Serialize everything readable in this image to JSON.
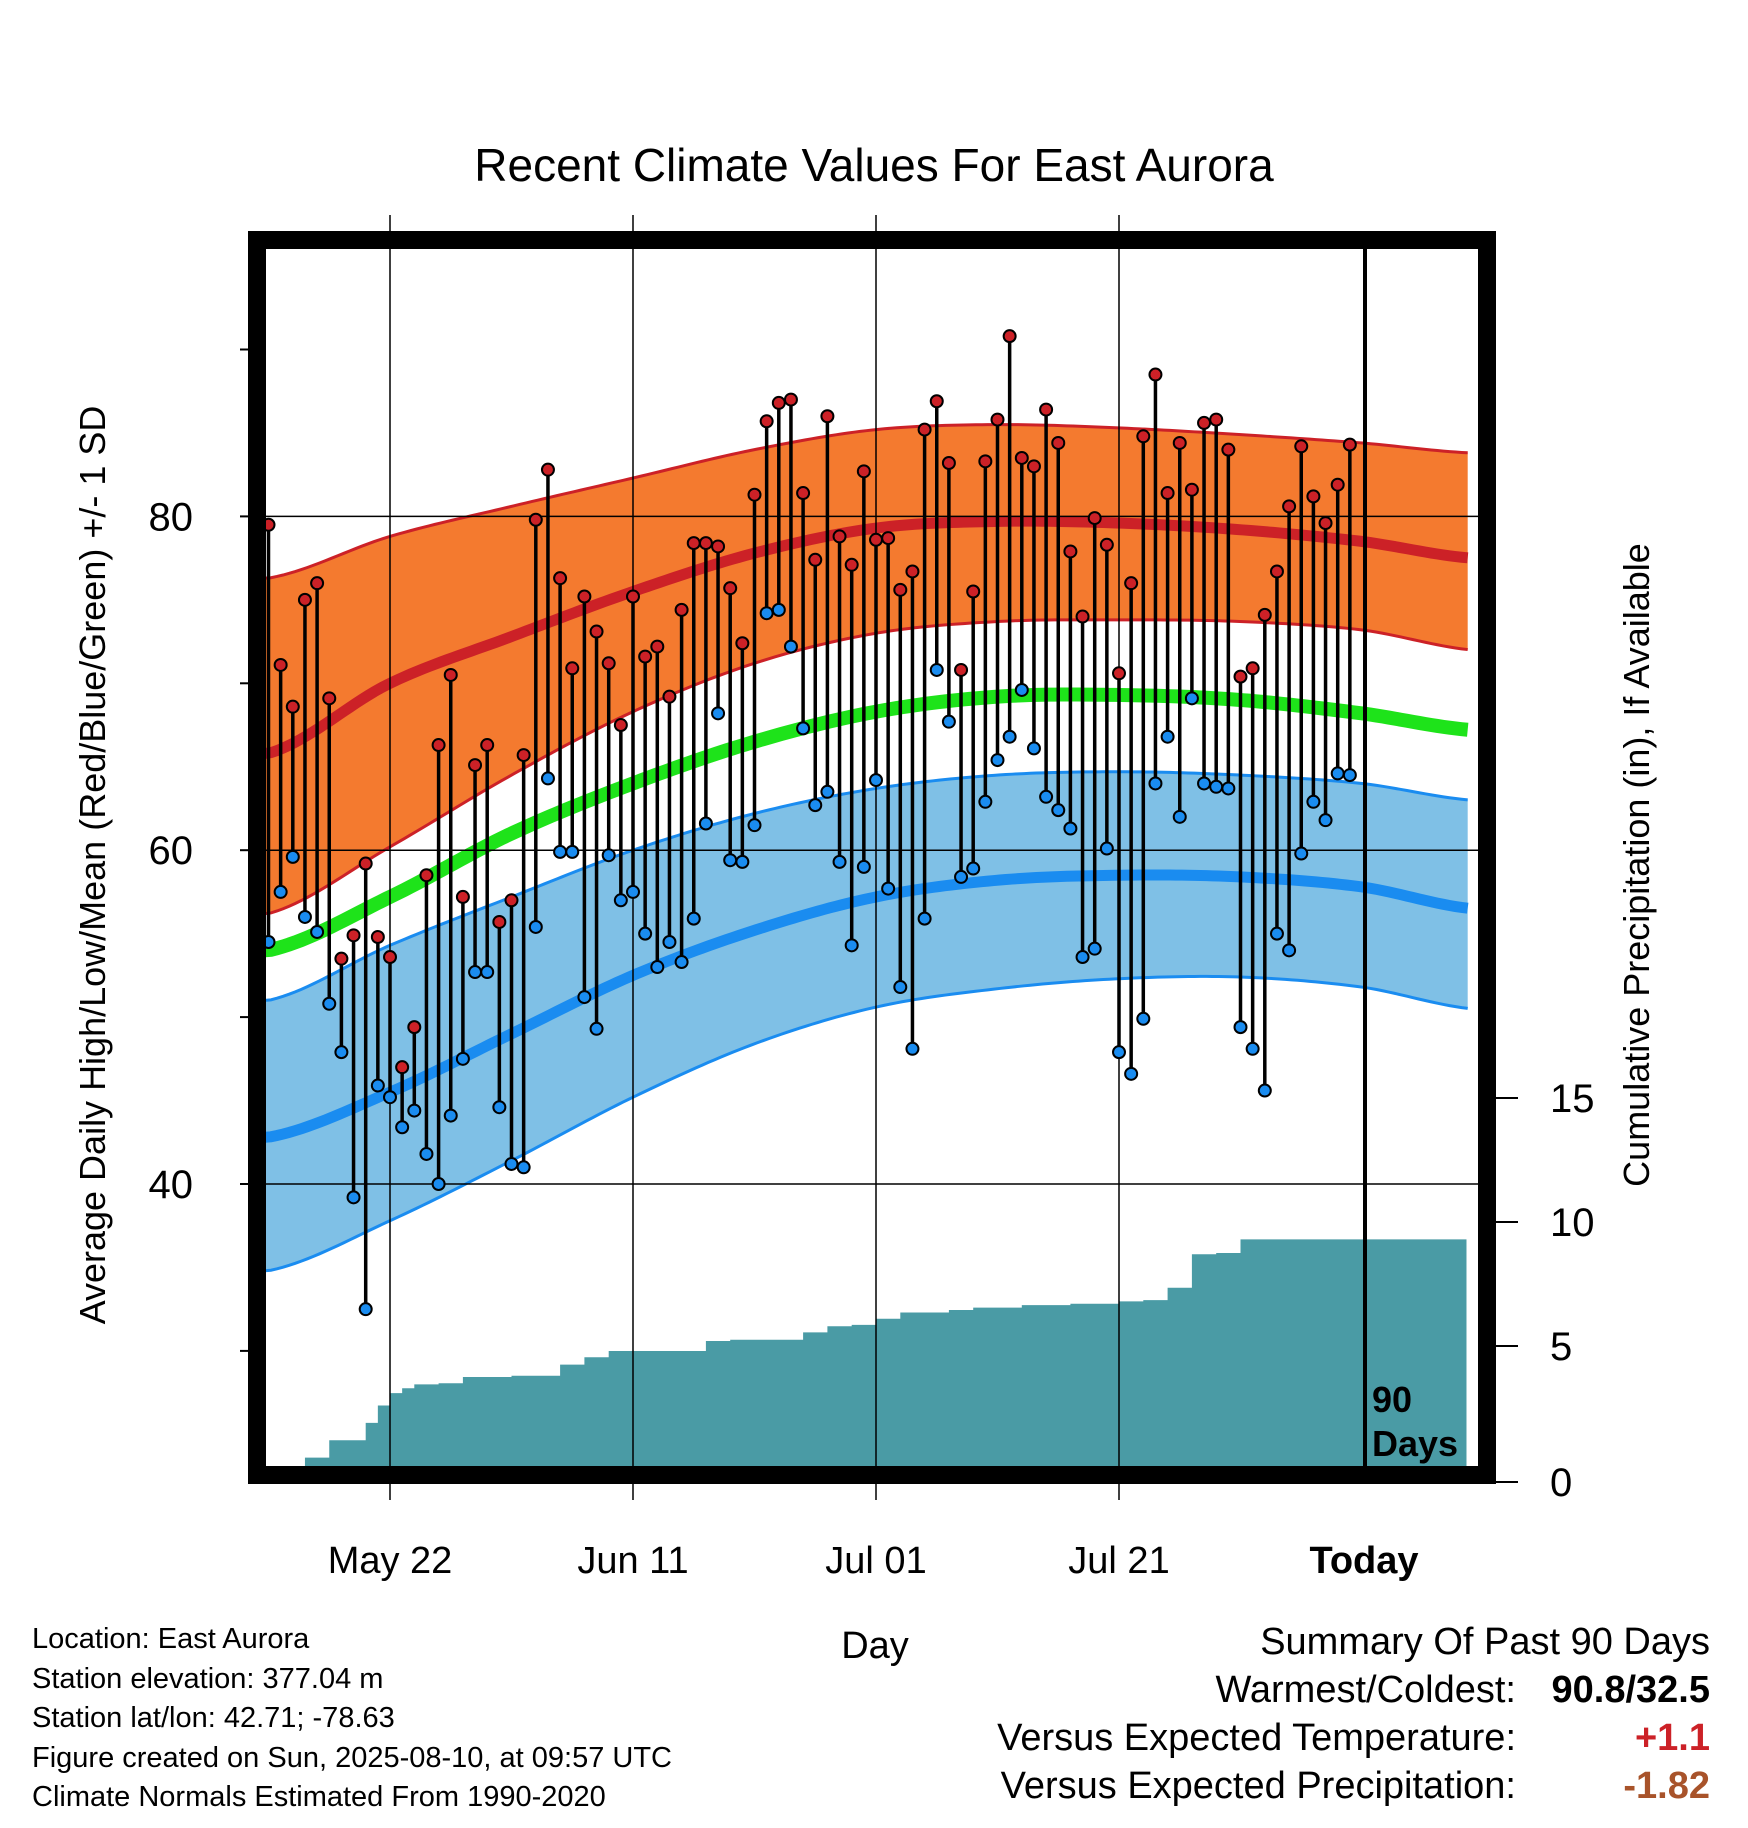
{
  "chart_data": {
    "type": "line",
    "title": "Recent Climate Values For East Aurora",
    "xlabel": "Day",
    "ylabel": "Average Daily High/Low/Mean (Red/Blue/Green) +/- 1 SD",
    "y2label": "Cumulative Precipitation (in), If Available",
    "x_ticks": [
      {
        "day": 10,
        "label": "May 22"
      },
      {
        "day": 30,
        "label": "Jun 11"
      },
      {
        "day": 50,
        "label": "Jul 01"
      },
      {
        "day": 70,
        "label": "Jul 21"
      },
      {
        "day": 90,
        "label": "Today"
      }
    ],
    "xlim": [
      -1,
      99
    ],
    "ylim": [
      25,
      97
    ],
    "y_ticks": [
      40,
      60,
      80
    ],
    "y_minor_ticks": [
      30,
      50,
      70,
      90
    ],
    "y2_ticks": [
      0,
      5,
      10,
      15
    ],
    "y2lim": [
      0,
      15
    ],
    "today_marker_label": "90\nDays",
    "normals": {
      "days": [
        0,
        10,
        20,
        30,
        40,
        50,
        60,
        70,
        80,
        90,
        99
      ],
      "high_mean": [
        65.8,
        70.0,
        72.8,
        75.5,
        77.8,
        79.3,
        79.7,
        79.6,
        79.2,
        78.5,
        77.5
      ],
      "high_sd_upper": [
        76.3,
        78.8,
        80.6,
        82.3,
        84.0,
        85.2,
        85.5,
        85.3,
        84.9,
        84.4,
        83.8
      ],
      "high_sd_lower": [
        56.2,
        60.2,
        64.5,
        68.3,
        71.2,
        73.0,
        73.7,
        73.8,
        73.7,
        73.2,
        72.0
      ],
      "mean": [
        54.0,
        57.2,
        61.0,
        64.0,
        66.5,
        68.3,
        69.2,
        69.3,
        69.0,
        68.2,
        67.2
      ],
      "low_mean": [
        42.8,
        45.5,
        49.0,
        52.5,
        55.2,
        57.2,
        58.2,
        58.5,
        58.4,
        57.8,
        56.5
      ],
      "low_sd_upper": [
        51.0,
        54.3,
        57.2,
        60.0,
        62.2,
        63.7,
        64.5,
        64.7,
        64.5,
        64.0,
        63.0
      ],
      "low_sd_lower": [
        34.8,
        37.8,
        41.4,
        45.2,
        48.4,
        50.6,
        51.7,
        52.3,
        52.4,
        51.8,
        50.5
      ]
    },
    "daily_high": [
      79.5,
      71.1,
      68.6,
      75.0,
      76.0,
      69.1,
      53.5,
      54.9,
      59.2,
      54.8,
      53.6,
      47.0,
      49.4,
      58.5,
      66.3,
      70.5,
      57.2,
      65.1,
      66.3,
      55.7,
      57.0,
      65.7,
      79.8,
      82.8,
      76.3,
      70.9,
      75.2,
      73.1,
      71.2,
      67.5,
      75.2,
      71.6,
      72.2,
      69.2,
      74.4,
      78.4,
      78.4,
      78.2,
      75.7,
      72.4,
      81.3,
      85.7,
      86.8,
      87.0,
      81.4,
      77.4,
      86.0,
      78.8,
      77.1,
      82.7,
      78.6,
      78.7,
      75.6,
      76.7,
      85.2,
      86.9,
      83.2,
      70.8,
      75.5,
      83.3,
      85.8,
      90.8,
      83.5,
      83.0,
      86.4,
      84.4,
      77.9,
      74.0,
      79.9,
      78.3,
      70.6,
      76.0,
      84.8,
      88.5,
      81.4,
      84.4,
      81.6,
      85.6,
      85.8,
      84.0,
      70.4,
      70.9,
      74.1,
      76.7,
      80.6,
      84.2,
      81.2,
      79.6,
      81.9,
      84.3
    ],
    "daily_low": [
      54.5,
      57.5,
      59.6,
      56.0,
      55.1,
      50.8,
      47.9,
      39.2,
      32.5,
      45.9,
      45.2,
      43.4,
      44.4,
      41.8,
      40.0,
      44.1,
      47.5,
      52.7,
      52.7,
      44.6,
      41.2,
      41.0,
      55.4,
      64.3,
      59.9,
      59.9,
      51.2,
      49.3,
      59.7,
      57.0,
      57.5,
      55.0,
      53.0,
      54.5,
      53.3,
      55.9,
      61.6,
      68.2,
      59.4,
      59.3,
      61.5,
      74.2,
      74.4,
      72.2,
      67.3,
      62.7,
      63.5,
      59.3,
      54.3,
      59.0,
      64.2,
      57.7,
      51.8,
      48.1,
      55.9,
      70.8,
      67.7,
      58.4,
      58.9,
      62.9,
      65.4,
      66.8,
      69.6,
      66.1,
      63.2,
      62.4,
      61.3,
      53.6,
      54.1,
      60.1,
      47.9,
      46.6,
      49.9,
      64.0,
      66.8,
      62.0,
      69.1,
      64.0,
      63.8,
      63.7,
      49.4,
      48.1,
      45.6,
      55.0,
      54.0,
      59.8,
      62.9,
      61.8,
      64.6,
      64.5
    ],
    "cumulative_precip_steps": [
      [
        2,
        0.15
      ],
      [
        3,
        0.5
      ],
      [
        5,
        1.2
      ],
      [
        8,
        1.9
      ],
      [
        9,
        2.6
      ],
      [
        10,
        3.1
      ],
      [
        11,
        3.3
      ],
      [
        12,
        3.45
      ],
      [
        14,
        3.5
      ],
      [
        16,
        3.75
      ],
      [
        20,
        3.8
      ],
      [
        24,
        4.25
      ],
      [
        26,
        4.55
      ],
      [
        28,
        4.8
      ],
      [
        30,
        4.8
      ],
      [
        36,
        5.2
      ],
      [
        38,
        5.25
      ],
      [
        44,
        5.55
      ],
      [
        46,
        5.8
      ],
      [
        48,
        5.85
      ],
      [
        50,
        6.1
      ],
      [
        52,
        6.35
      ],
      [
        56,
        6.45
      ],
      [
        58,
        6.55
      ],
      [
        62,
        6.65
      ],
      [
        66,
        6.7
      ],
      [
        70,
        6.8
      ],
      [
        72,
        6.85
      ],
      [
        74,
        7.35
      ],
      [
        76,
        8.7
      ],
      [
        78,
        8.75
      ],
      [
        80,
        9.3
      ],
      [
        99,
        9.3
      ]
    ]
  },
  "labels": {
    "xlabel": "Day",
    "ylabel_left": "Average Daily High/Low/Mean (Red/Blue/Green) +/- 1 SD",
    "ylabel_right": "Cumulative Precipitation (in), If Available"
  },
  "info": {
    "location": "Location: East Aurora",
    "elevation": "Station elevation: 377.04 m",
    "latlon": "Station lat/lon: 42.71; -78.63",
    "created": "Figure created on Sun, 2025-08-10, at 09:57 UTC",
    "normals": "Climate Normals Estimated From 1990-2020"
  },
  "summary": {
    "heading": "Summary Of Past 90 Days",
    "warm_cold_label": "Warmest/Coldest:",
    "warm_cold_value": "90.8/32.5",
    "temp_label": "Versus Expected Temperature:",
    "temp_value": "+1.1",
    "precip_label": "Versus Expected Precipitation:",
    "precip_value": "-1.82"
  },
  "colors": {
    "high_band": "#f47a2f",
    "high_line": "#cc2127",
    "mean_line": "#1ee31a",
    "low_band": "#7fc0e6",
    "low_line": "#1a8cf0",
    "precip_fill": "#4a9ba5",
    "high_dot": "#cc2127",
    "low_dot": "#1a8cf0",
    "temp_value": "#cc2127",
    "precip_value": "#a8532a"
  }
}
